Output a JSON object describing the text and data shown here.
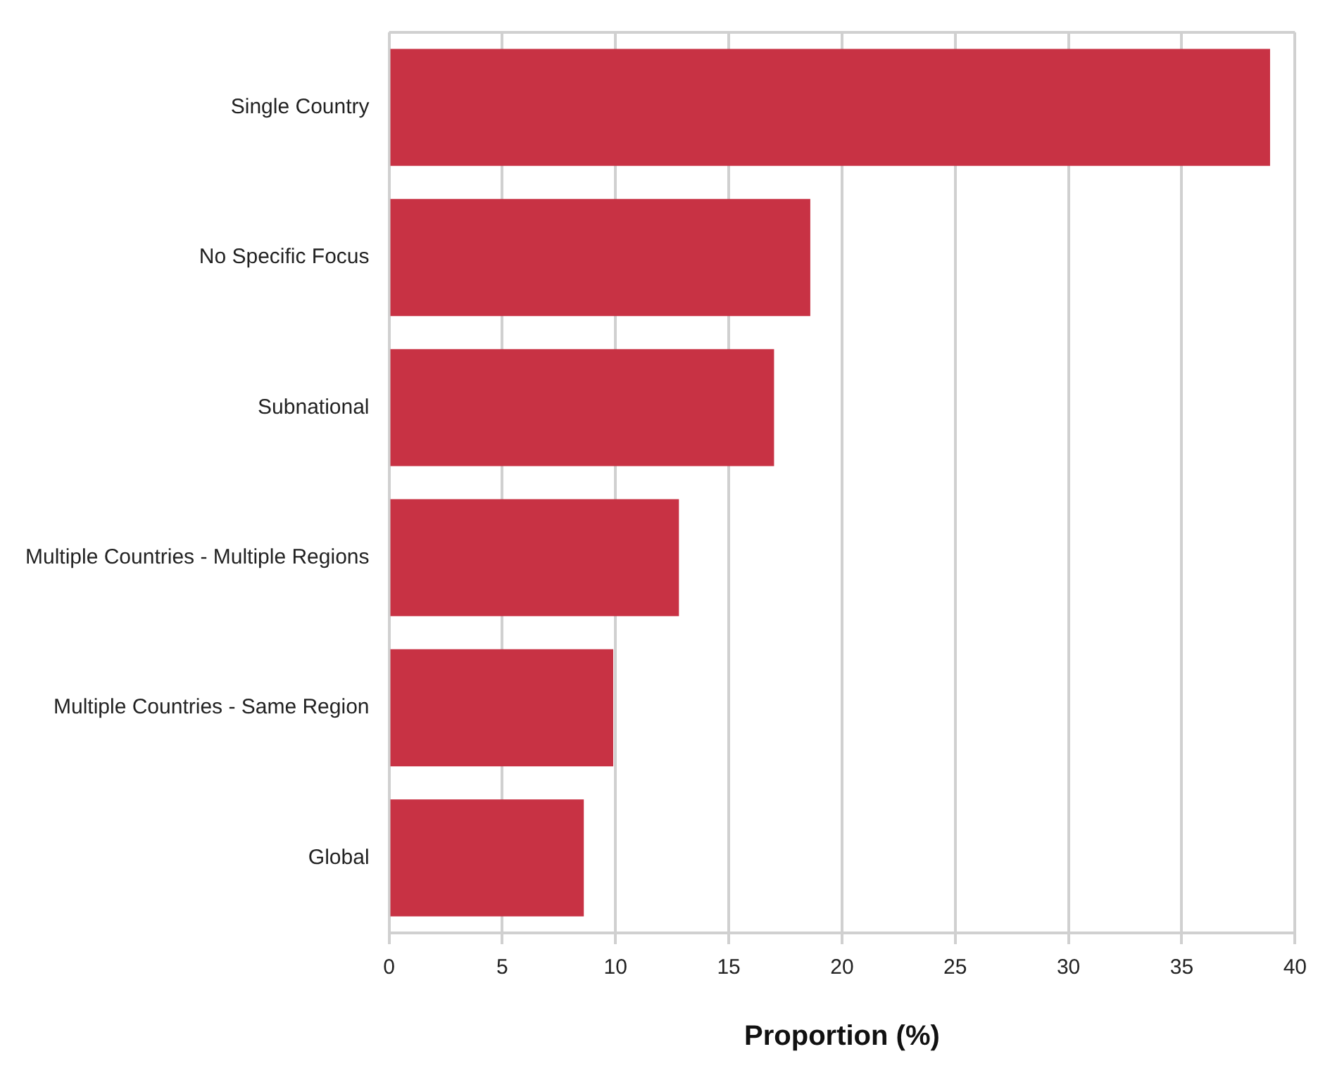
{
  "chart_data": {
    "type": "bar",
    "orientation": "horizontal",
    "xlabel": "Proportion (%)",
    "categories": [
      "Single Country",
      "No Specific Focus",
      "Subnational",
      "Multiple Countries - Multiple Regions",
      "Multiple Countries - Same Region",
      "Global"
    ],
    "values": [
      38.9,
      18.6,
      17.0,
      12.8,
      9.9,
      8.6
    ],
    "color": "#c83244",
    "xlim": [
      0,
      40
    ],
    "xticks": [
      0,
      5,
      10,
      15,
      20,
      25,
      30,
      35,
      40
    ],
    "grid": "x",
    "legend": false
  }
}
